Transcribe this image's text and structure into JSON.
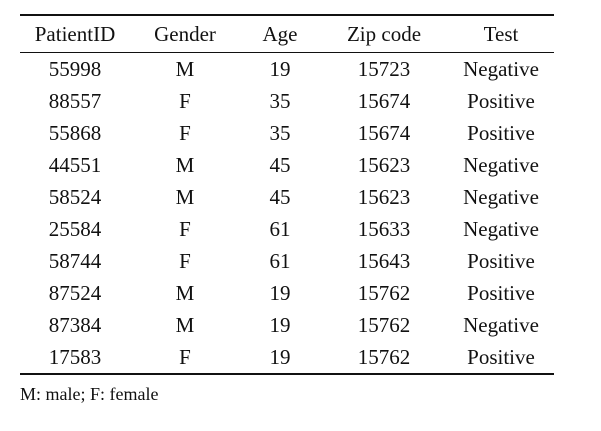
{
  "table": {
    "headers": [
      "PatientID",
      "Gender",
      "Age",
      "Zip code",
      "Test"
    ],
    "rows": [
      [
        "55998",
        "M",
        "19",
        "15723",
        "Negative"
      ],
      [
        "88557",
        "F",
        "35",
        "15674",
        "Positive"
      ],
      [
        "55868",
        "F",
        "35",
        "15674",
        "Positive"
      ],
      [
        "44551",
        "M",
        "45",
        "15623",
        "Negative"
      ],
      [
        "58524",
        "M",
        "45",
        "15623",
        "Negative"
      ],
      [
        "25584",
        "F",
        "61",
        "15633",
        "Negative"
      ],
      [
        "58744",
        "F",
        "61",
        "15643",
        "Positive"
      ],
      [
        "87524",
        "M",
        "19",
        "15762",
        "Positive"
      ],
      [
        "87384",
        "M",
        "19",
        "15762",
        "Negative"
      ],
      [
        "17583",
        "F",
        "19",
        "15762",
        "Positive"
      ]
    ]
  },
  "note": "M: male; F: female"
}
